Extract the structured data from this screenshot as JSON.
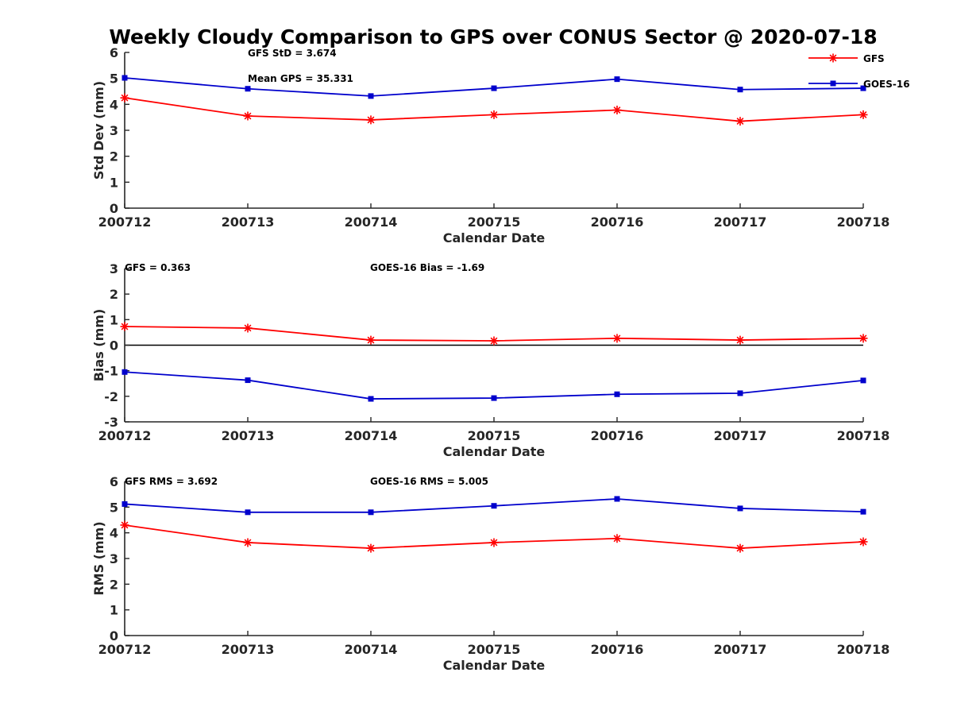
{
  "chart_data": {
    "title": "Weekly Cloudy Comparison to GPS over CONUS Sector @ 2020-07-18",
    "legend": {
      "placement": "top-right",
      "entries": [
        {
          "name": "GFS",
          "color": "#ff0000",
          "marker": "asterisk"
        },
        {
          "name": "GOES-16",
          "color": "#0000cc",
          "marker": "square"
        }
      ]
    },
    "panels": [
      {
        "type": "line",
        "ylabel": "Std Dev (mm)",
        "xlabel": "Calendar Date",
        "categories": [
          "200712",
          "200713",
          "200714",
          "200715",
          "200716",
          "200717",
          "200718"
        ],
        "ylim": [
          0,
          6
        ],
        "yticks": [
          "0",
          "1",
          "2",
          "3",
          "4",
          "5",
          "6"
        ],
        "zero_line": false,
        "annotations": [
          "GFS StD = 3.674",
          "Mean GPS = 35.331"
        ],
        "series": [
          {
            "name": "GFS",
            "color": "#ff0000",
            "marker": "asterisk",
            "values": [
              4.25,
              3.55,
              3.4,
              3.6,
              3.78,
              3.35,
              3.6
            ]
          },
          {
            "name": "GOES-16",
            "color": "#0000cc",
            "marker": "square",
            "values": [
              5.02,
              4.6,
              4.32,
              4.62,
              4.97,
              4.57,
              4.62
            ]
          }
        ]
      },
      {
        "type": "line",
        "ylabel": "Bias (mm)",
        "xlabel": "Calendar Date",
        "categories": [
          "200712",
          "200713",
          "200714",
          "200715",
          "200716",
          "200717",
          "200718"
        ],
        "ylim": [
          -3,
          3
        ],
        "yticks": [
          "-3",
          "-2",
          "-1",
          "0",
          "1",
          "2",
          "3"
        ],
        "zero_line": true,
        "annotations": [
          "GFS = 0.363",
          "GOES-16 Bias  = -1.69"
        ],
        "series": [
          {
            "name": "GFS",
            "color": "#ff0000",
            "marker": "asterisk",
            "values": [
              0.73,
              0.67,
              0.2,
              0.17,
              0.27,
              0.2,
              0.27
            ]
          },
          {
            "name": "GOES-16",
            "color": "#0000cc",
            "marker": "square",
            "values": [
              -1.05,
              -1.37,
              -2.1,
              -2.07,
              -1.92,
              -1.88,
              -1.38
            ]
          }
        ]
      },
      {
        "type": "line",
        "ylabel": "RMS (mm)",
        "xlabel": "Calendar Date",
        "categories": [
          "200712",
          "200713",
          "200714",
          "200715",
          "200716",
          "200717",
          "200718"
        ],
        "ylim": [
          0,
          6
        ],
        "yticks": [
          "0",
          "1",
          "2",
          "3",
          "4",
          "5",
          "6"
        ],
        "zero_line": false,
        "annotations": [
          "GFS RMS = 3.692",
          "GOES-16 RMS = 5.005"
        ],
        "series": [
          {
            "name": "GFS",
            "color": "#ff0000",
            "marker": "asterisk",
            "values": [
              4.3,
              3.62,
              3.4,
              3.62,
              3.78,
              3.4,
              3.65
            ]
          },
          {
            "name": "GOES-16",
            "color": "#0000cc",
            "marker": "square",
            "values": [
              5.12,
              4.8,
              4.8,
              5.05,
              5.32,
              4.95,
              4.82
            ]
          }
        ]
      }
    ]
  }
}
